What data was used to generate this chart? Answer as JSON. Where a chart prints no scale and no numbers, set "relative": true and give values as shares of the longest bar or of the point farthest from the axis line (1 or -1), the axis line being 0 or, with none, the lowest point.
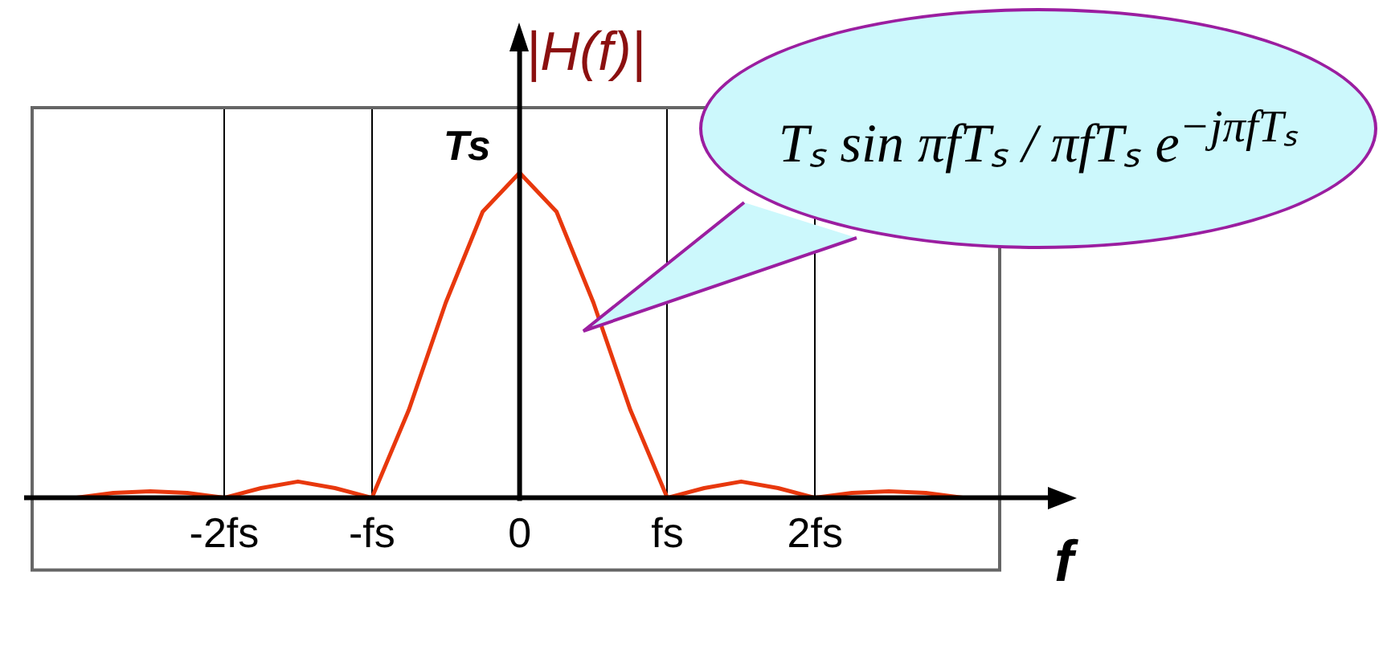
{
  "chart_data": {
    "type": "line",
    "relative": true,
    "xlabel": "f",
    "ylabel": "|H(f)|",
    "x": [
      -3.25,
      -3,
      -2.75,
      -2.5,
      -2.25,
      -2,
      -1.75,
      -1.5,
      -1.25,
      -1,
      -0.75,
      -0.5,
      -0.25,
      0,
      0.25,
      0.5,
      0.75,
      1,
      1.25,
      1.5,
      1.75,
      2,
      2.25,
      2.5,
      2.75,
      3,
      3.25
    ],
    "series": [
      {
        "color": "#e8380d",
        "values": [
          0,
          0,
          0.015,
          0.02,
          0.015,
          0,
          0.03,
          0.05,
          0.03,
          0,
          0.27,
          0.6,
          0.88,
          1,
          0.88,
          0.6,
          0.27,
          0,
          0.03,
          0.05,
          0.03,
          0,
          0.015,
          0.02,
          0.015,
          0,
          0
        ]
      }
    ],
    "xlim": [
      -3.3,
      3.25
    ],
    "xticks": [
      {
        "value": -2,
        "label": "-2fs"
      },
      {
        "value": -1,
        "label": "-fs"
      },
      {
        "value": 0,
        "label": "0"
      },
      {
        "value": 1,
        "label": "fs"
      },
      {
        "value": 2,
        "label": "2fs"
      }
    ],
    "grid": "x",
    "marker": "none",
    "line_style": "solid",
    "legend": false,
    "annotations": [
      {
        "text": "Ts",
        "x": 0,
        "y": 1
      },
      "Tₛ sin πfTₛ / πfTₛ e$^{−jπfTₛ}$"
    ]
  }
}
